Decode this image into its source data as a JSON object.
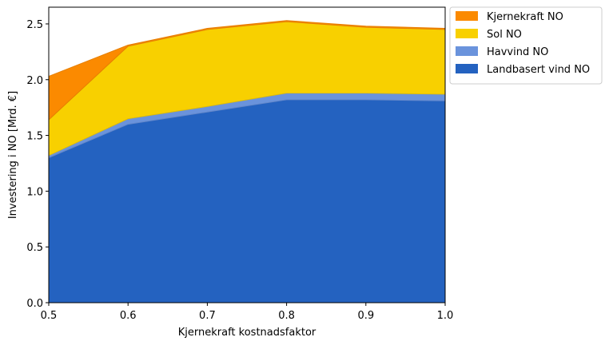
{
  "chart_data": {
    "type": "area",
    "stacked": true,
    "title": "",
    "xlabel": "Kjernekraft kostnadsfaktor",
    "ylabel": "Investering i NO [Mrd. €]",
    "x": [
      0.5,
      0.6,
      0.7,
      0.8,
      0.9,
      1.0
    ],
    "x_tick_labels": [
      "0.5",
      "0.6",
      "0.7",
      "0.8",
      "0.9",
      "1.0"
    ],
    "y_tick_labels": [
      "0.0",
      "0.5",
      "1.0",
      "1.5",
      "2.0",
      "2.5"
    ],
    "y_ticks": [
      0.0,
      0.5,
      1.0,
      1.5,
      2.0,
      2.5
    ],
    "xlim": [
      0.5,
      1.0
    ],
    "ylim": [
      0.0,
      2.65
    ],
    "grid": false,
    "legend_position": "outside-top-right",
    "series": [
      {
        "name": "Landbasert vind NO",
        "color": "#2462c0",
        "values": [
          1.3,
          1.6,
          1.71,
          1.82,
          1.82,
          1.81
        ]
      },
      {
        "name": "Havvind NO",
        "color": "#6a93dc",
        "values": [
          0.02,
          0.05,
          0.05,
          0.06,
          0.06,
          0.06
        ]
      },
      {
        "name": "Sol NO",
        "color": "#f8d000",
        "values": [
          0.32,
          0.65,
          0.69,
          0.64,
          0.59,
          0.58
        ]
      },
      {
        "name": "Kjernekraft NO",
        "color": "#fb8a00",
        "values": [
          0.39,
          0.01,
          0.01,
          0.01,
          0.01,
          0.01
        ]
      }
    ],
    "legend_order": [
      "Kjernekraft NO",
      "Sol NO",
      "Havvind NO",
      "Landbasert vind NO"
    ]
  }
}
